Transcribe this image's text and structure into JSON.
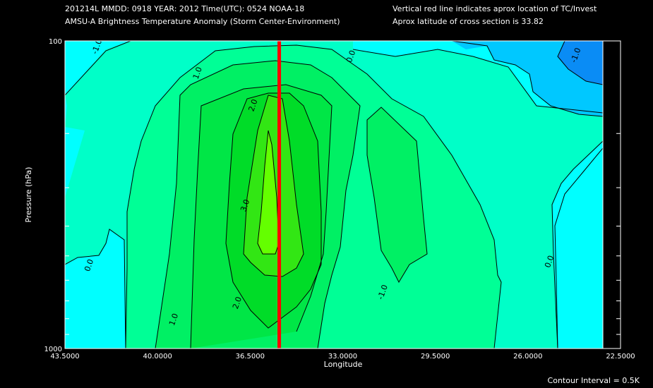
{
  "header": {
    "line1_left": "201214L  MMDD: 0918 YEAR: 2012 Time(UTC): 0524 NOAA-18",
    "line2_left": "AMSU-A Brightness Temperature Anomaly (Storm Center-Environment)",
    "line1_right": "Vertical red line indicates aprox location of TC/Invest",
    "line2_right": "Aprox latitude of cross section is 33.82"
  },
  "footer": {
    "contour_interval": "Contour Interval = 0.5K"
  },
  "colors": {
    "c_lt_neg1": "#0a8cf5",
    "c_neg1_to_neg05": "#00c8ff",
    "c_neg05_to_0": "#00ffff",
    "c_0_to_05": "#00ffc8",
    "c_05_to_1": "#00ff96",
    "c_1_to_15": "#00f064",
    "c_15_to_2": "#00e646",
    "c_2_to_25": "#00dc28",
    "c_25_to_3": "#32e614",
    "c_gt_3": "#64ff00",
    "tc_line": "#ff0000"
  },
  "chart_data": {
    "type": "heatmap",
    "subtype": "filled-contour",
    "xlabel": "Longitude",
    "ylabel": "Pressure (hPa)",
    "xlim": [
      43.5,
      22.5
    ],
    "ylim": [
      1000,
      100
    ],
    "y_scale": "log",
    "x_tick_labels": [
      "43.5000",
      "40.0000",
      "36.5000",
      "33.0000",
      "29.5000",
      "26.0000",
      "22.5000"
    ],
    "x_tick_values": [
      43.5,
      40.0,
      36.5,
      33.0,
      29.5,
      26.0,
      22.5
    ],
    "y_tick_labels": [
      "100",
      "1000"
    ],
    "y_tick_values": [
      100,
      1000
    ],
    "y_minor_ticks": [
      200,
      300,
      400,
      500,
      600,
      700,
      800,
      900
    ],
    "tc_longitude": 35.4,
    "contour_interval": 0.5,
    "contour_labels": [
      {
        "text": "-1.0",
        "lon": 42.2,
        "p": 105
      },
      {
        "text": "-1.0",
        "lon": 24.1,
        "p": 112
      },
      {
        "text": "1.0",
        "lon": 38.4,
        "p": 128
      },
      {
        "text": "2.0",
        "lon": 36.3,
        "p": 163
      },
      {
        "text": "0.0",
        "lon": 32.6,
        "p": 113
      },
      {
        "text": "3.0",
        "lon": 36.6,
        "p": 345
      },
      {
        "text": "0.0",
        "lon": 42.5,
        "p": 540
      },
      {
        "text": "-1.0",
        "lon": 31.4,
        "p": 660
      },
      {
        "text": "2.0",
        "lon": 36.9,
        "p": 715
      },
      {
        "text": "1.0",
        "lon": 39.3,
        "p": 810
      },
      {
        "text": "0.0",
        "lon": 25.1,
        "p": 525
      }
    ]
  }
}
